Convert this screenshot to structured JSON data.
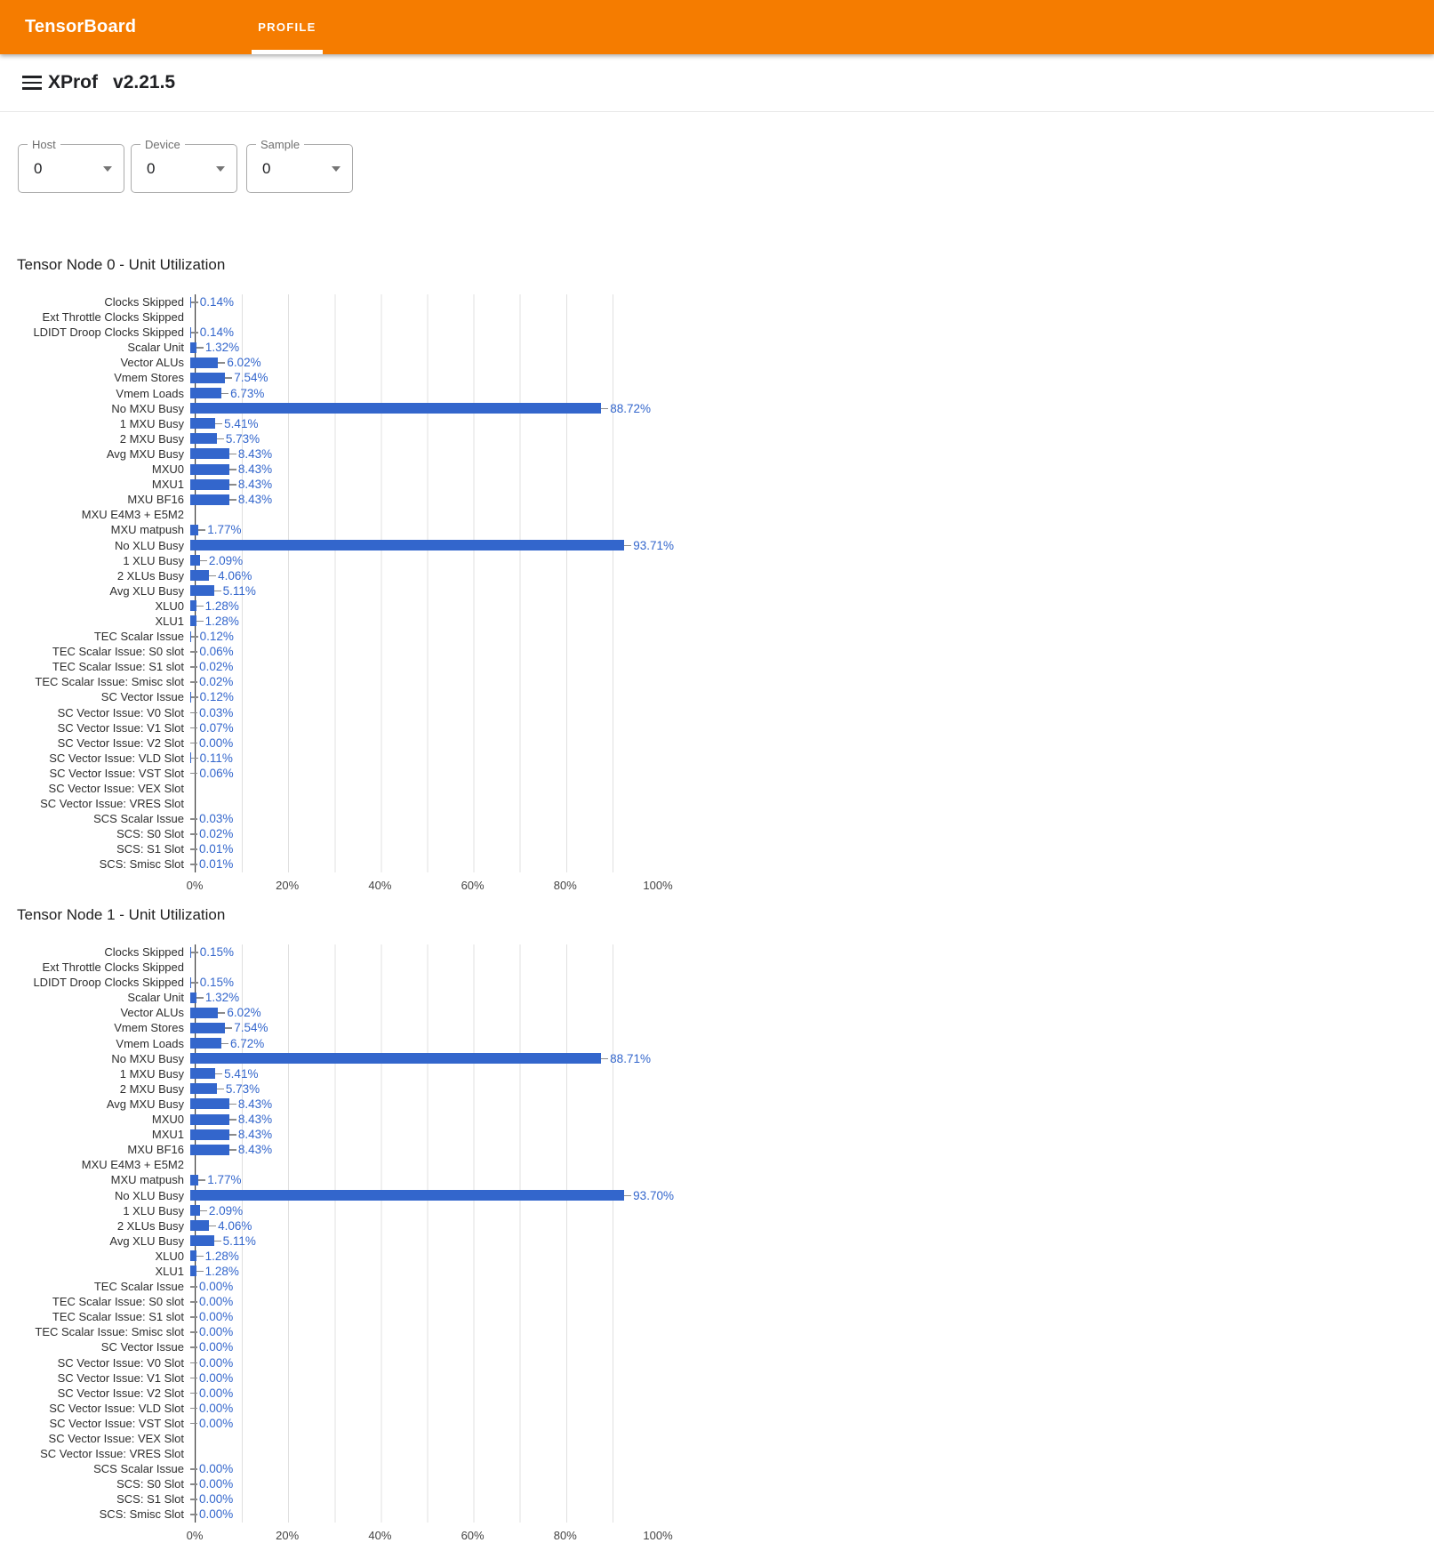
{
  "header": {
    "brand": "TensorBoard",
    "active_tab": "PROFILE"
  },
  "toolbar": {
    "app_name": "XProf",
    "version": "v2.21.5"
  },
  "filters": [
    {
      "label": "Host",
      "value": "0"
    },
    {
      "label": "Device",
      "value": "0"
    },
    {
      "label": "Sample",
      "value": "0"
    }
  ],
  "colors": {
    "header_orange": "#f57c00",
    "bar_blue": "#3366cc",
    "annotation_blue": "#3366cc",
    "axis_line": "#333333",
    "gridline": "#e0e0e0"
  },
  "chart_data": [
    {
      "type": "bar",
      "orientation": "horizontal",
      "title": "Tensor Node 0 - Unit Utilization",
      "xlim": [
        0,
        100
      ],
      "x_ticks": [
        "0%",
        "20%",
        "40%",
        "60%",
        "80%",
        "100%"
      ],
      "grid": "vertical gridlines every 10%, labels every 20%",
      "rows": [
        {
          "label": "Clocks Skipped",
          "value": 0.14,
          "annotation": "0.14%"
        },
        {
          "label": "Ext Throttle Clocks Skipped",
          "value": null,
          "annotation": null
        },
        {
          "label": "LDIDT Droop Clocks Skipped",
          "value": 0.14,
          "annotation": "0.14%"
        },
        {
          "label": "Scalar Unit",
          "value": 1.32,
          "annotation": "1.32%"
        },
        {
          "label": "Vector ALUs",
          "value": 6.02,
          "annotation": "6.02%"
        },
        {
          "label": "Vmem Stores",
          "value": 7.54,
          "annotation": "7.54%"
        },
        {
          "label": "Vmem Loads",
          "value": 6.73,
          "annotation": "6.73%"
        },
        {
          "label": "No MXU Busy",
          "value": 88.72,
          "annotation": "88.72%"
        },
        {
          "label": "1 MXU Busy",
          "value": 5.41,
          "annotation": "5.41%"
        },
        {
          "label": "2 MXU Busy",
          "value": 5.73,
          "annotation": "5.73%"
        },
        {
          "label": "Avg MXU Busy",
          "value": 8.43,
          "annotation": "8.43%"
        },
        {
          "label": "MXU0",
          "value": 8.43,
          "annotation": "8.43%"
        },
        {
          "label": "MXU1",
          "value": 8.43,
          "annotation": "8.43%"
        },
        {
          "label": "MXU BF16",
          "value": 8.43,
          "annotation": "8.43%"
        },
        {
          "label": "MXU E4M3 + E5M2",
          "value": null,
          "annotation": null
        },
        {
          "label": "MXU matpush",
          "value": 1.77,
          "annotation": "1.77%"
        },
        {
          "label": "No XLU Busy",
          "value": 93.71,
          "annotation": "93.71%"
        },
        {
          "label": "1 XLU Busy",
          "value": 2.09,
          "annotation": "2.09%"
        },
        {
          "label": "2 XLUs Busy",
          "value": 4.06,
          "annotation": "4.06%"
        },
        {
          "label": "Avg XLU Busy",
          "value": 5.11,
          "annotation": "5.11%"
        },
        {
          "label": "XLU0",
          "value": 1.28,
          "annotation": "1.28%"
        },
        {
          "label": "XLU1",
          "value": 1.28,
          "annotation": "1.28%"
        },
        {
          "label": "TEC Scalar Issue",
          "value": 0.12,
          "annotation": "0.12%"
        },
        {
          "label": "TEC Scalar Issue: S0 slot",
          "value": 0.06,
          "annotation": "0.06%"
        },
        {
          "label": "TEC Scalar Issue: S1 slot",
          "value": 0.02,
          "annotation": "0.02%"
        },
        {
          "label": "TEC Scalar Issue: Smisc slot",
          "value": 0.02,
          "annotation": "0.02%"
        },
        {
          "label": "SC Vector Issue",
          "value": 0.12,
          "annotation": "0.12%"
        },
        {
          "label": "SC Vector Issue: V0 Slot",
          "value": 0.03,
          "annotation": "0.03%"
        },
        {
          "label": "SC Vector Issue: V1 Slot",
          "value": 0.07,
          "annotation": "0.07%"
        },
        {
          "label": "SC Vector Issue: V2 Slot",
          "value": 0.0,
          "annotation": "0.00%"
        },
        {
          "label": "SC Vector Issue: VLD Slot",
          "value": 0.11,
          "annotation": "0.11%"
        },
        {
          "label": "SC Vector Issue: VST Slot",
          "value": 0.06,
          "annotation": "0.06%"
        },
        {
          "label": "SC Vector Issue: VEX Slot",
          "value": null,
          "annotation": null
        },
        {
          "label": "SC Vector Issue: VRES Slot",
          "value": null,
          "annotation": null
        },
        {
          "label": "SCS Scalar Issue",
          "value": 0.03,
          "annotation": "0.03%"
        },
        {
          "label": "SCS: S0 Slot",
          "value": 0.02,
          "annotation": "0.02%"
        },
        {
          "label": "SCS: S1 Slot",
          "value": 0.01,
          "annotation": "0.01%"
        },
        {
          "label": "SCS: Smisc Slot",
          "value": 0.01,
          "annotation": "0.01%"
        }
      ]
    },
    {
      "type": "bar",
      "orientation": "horizontal",
      "title": "Tensor Node 1 - Unit Utilization",
      "xlim": [
        0,
        100
      ],
      "x_ticks": [
        "0%",
        "20%",
        "40%",
        "60%",
        "80%",
        "100%"
      ],
      "grid": "vertical gridlines every 10%, labels every 20%",
      "rows": [
        {
          "label": "Clocks Skipped",
          "value": 0.15,
          "annotation": "0.15%"
        },
        {
          "label": "Ext Throttle Clocks Skipped",
          "value": null,
          "annotation": null
        },
        {
          "label": "LDIDT Droop Clocks Skipped",
          "value": 0.15,
          "annotation": "0.15%"
        },
        {
          "label": "Scalar Unit",
          "value": 1.32,
          "annotation": "1.32%"
        },
        {
          "label": "Vector ALUs",
          "value": 6.02,
          "annotation": "6.02%"
        },
        {
          "label": "Vmem Stores",
          "value": 7.54,
          "annotation": "7.54%"
        },
        {
          "label": "Vmem Loads",
          "value": 6.72,
          "annotation": "6.72%"
        },
        {
          "label": "No MXU Busy",
          "value": 88.71,
          "annotation": "88.71%"
        },
        {
          "label": "1 MXU Busy",
          "value": 5.41,
          "annotation": "5.41%"
        },
        {
          "label": "2 MXU Busy",
          "value": 5.73,
          "annotation": "5.73%"
        },
        {
          "label": "Avg MXU Busy",
          "value": 8.43,
          "annotation": "8.43%"
        },
        {
          "label": "MXU0",
          "value": 8.43,
          "annotation": "8.43%"
        },
        {
          "label": "MXU1",
          "value": 8.43,
          "annotation": "8.43%"
        },
        {
          "label": "MXU BF16",
          "value": 8.43,
          "annotation": "8.43%"
        },
        {
          "label": "MXU E4M3 + E5M2",
          "value": null,
          "annotation": null
        },
        {
          "label": "MXU matpush",
          "value": 1.77,
          "annotation": "1.77%"
        },
        {
          "label": "No XLU Busy",
          "value": 93.7,
          "annotation": "93.70%"
        },
        {
          "label": "1 XLU Busy",
          "value": 2.09,
          "annotation": "2.09%"
        },
        {
          "label": "2 XLUs Busy",
          "value": 4.06,
          "annotation": "4.06%"
        },
        {
          "label": "Avg XLU Busy",
          "value": 5.11,
          "annotation": "5.11%"
        },
        {
          "label": "XLU0",
          "value": 1.28,
          "annotation": "1.28%"
        },
        {
          "label": "XLU1",
          "value": 1.28,
          "annotation": "1.28%"
        },
        {
          "label": "TEC Scalar Issue",
          "value": 0.0,
          "annotation": "0.00%"
        },
        {
          "label": "TEC Scalar Issue: S0 slot",
          "value": 0.0,
          "annotation": "0.00%"
        },
        {
          "label": "TEC Scalar Issue: S1 slot",
          "value": 0.0,
          "annotation": "0.00%"
        },
        {
          "label": "TEC Scalar Issue: Smisc slot",
          "value": 0.0,
          "annotation": "0.00%"
        },
        {
          "label": "SC Vector Issue",
          "value": 0.0,
          "annotation": "0.00%"
        },
        {
          "label": "SC Vector Issue: V0 Slot",
          "value": 0.0,
          "annotation": "0.00%"
        },
        {
          "label": "SC Vector Issue: V1 Slot",
          "value": 0.0,
          "annotation": "0.00%"
        },
        {
          "label": "SC Vector Issue: V2 Slot",
          "value": 0.0,
          "annotation": "0.00%"
        },
        {
          "label": "SC Vector Issue: VLD Slot",
          "value": 0.0,
          "annotation": "0.00%"
        },
        {
          "label": "SC Vector Issue: VST Slot",
          "value": 0.0,
          "annotation": "0.00%"
        },
        {
          "label": "SC Vector Issue: VEX Slot",
          "value": null,
          "annotation": null
        },
        {
          "label": "SC Vector Issue: VRES Slot",
          "value": null,
          "annotation": null
        },
        {
          "label": "SCS Scalar Issue",
          "value": 0.0,
          "annotation": "0.00%"
        },
        {
          "label": "SCS: S0 Slot",
          "value": 0.0,
          "annotation": "0.00%"
        },
        {
          "label": "SCS: S1 Slot",
          "value": 0.0,
          "annotation": "0.00%"
        },
        {
          "label": "SCS: Smisc Slot",
          "value": 0.0,
          "annotation": "0.00%"
        }
      ]
    }
  ]
}
